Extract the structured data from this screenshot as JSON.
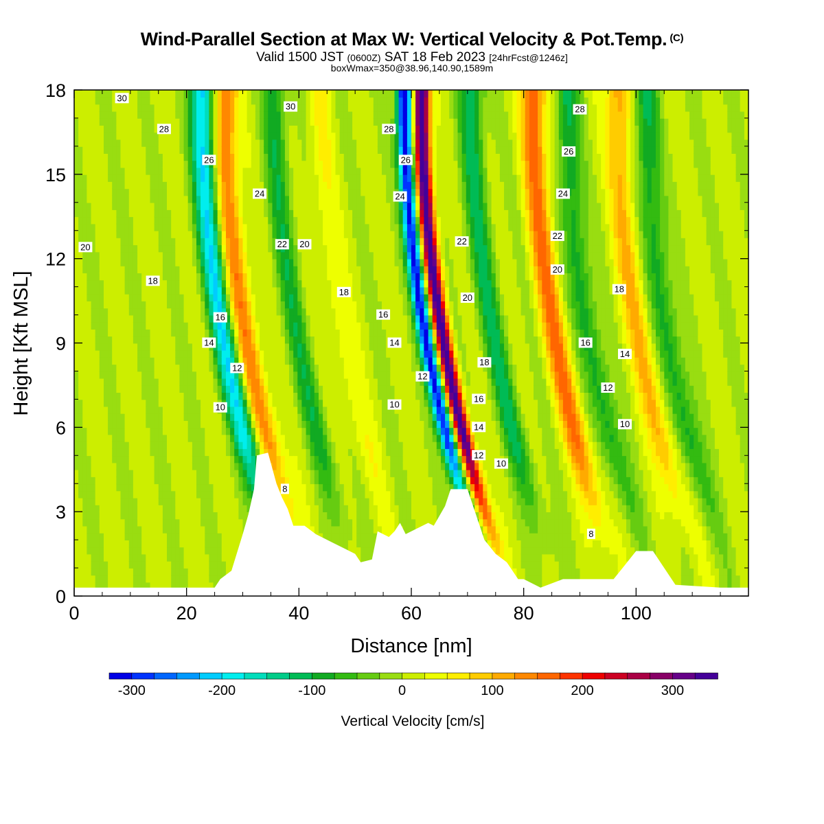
{
  "title": {
    "main": "Wind-Parallel Section at Max W: Vertical Velocity & Pot.Temp.",
    "copyright": "(C)",
    "valid_prefix": "Valid 1500 JST",
    "valid_utc": "(0600Z)",
    "valid_date": "SAT 18 Feb 2023",
    "forecast": "[24hrFcst@1246z]",
    "box_info": "boxWmax=350@38.96,140.90,1589m"
  },
  "colorbar": {
    "title": "Vertical Velocity [cm/s]",
    "tick_labels": [
      "-300",
      "-200",
      "-100",
      "0",
      "100",
      "200",
      "300"
    ],
    "tick_values": [
      -300,
      -200,
      -100,
      0,
      100,
      200,
      300
    ],
    "range": [
      -325,
      350
    ],
    "colors": [
      "#0000e6",
      "#0033ff",
      "#0066ff",
      "#0099ff",
      "#00ccff",
      "#00eeee",
      "#00ddbb",
      "#00cc88",
      "#00bb55",
      "#11aa22",
      "#33bb11",
      "#66cc11",
      "#99dd11",
      "#ccee00",
      "#eeff00",
      "#ffee00",
      "#ffcc00",
      "#ffaa00",
      "#ff8800",
      "#ff6600",
      "#ff3300",
      "#ee0000",
      "#cc0022",
      "#aa0044",
      "#880066",
      "#660088",
      "#440099"
    ]
  },
  "chart_data": {
    "type": "heatmap",
    "title": "Wind-Parallel Section at Max W: Vertical Velocity & Pot.Temp.",
    "xlabel": "Distance [nm]",
    "ylabel": "Height [Kft MSL]",
    "xlim": [
      0,
      120
    ],
    "ylim": [
      0,
      18
    ],
    "x_ticks": [
      0,
      20,
      40,
      60,
      80,
      100
    ],
    "y_ticks": [
      0,
      3,
      6,
      9,
      12,
      15,
      18
    ],
    "field": "Vertical Velocity [cm/s]",
    "updraft_bands": [
      {
        "x_base": 38,
        "peak": 140
      },
      {
        "x_base": 55,
        "peak": 40
      },
      {
        "x_base": 73,
        "peak": 350
      },
      {
        "x_base": 93,
        "peak": 150
      },
      {
        "x_base": 108,
        "peak": 100
      }
    ],
    "downdraft_bands": [
      {
        "x_base": 34,
        "peak": -200
      },
      {
        "x_base": 47,
        "peak": -90
      },
      {
        "x_base": 70,
        "peak": -320
      },
      {
        "x_base": 82,
        "peak": -110
      },
      {
        "x_base": 99,
        "peak": -100
      },
      {
        "x_base": 113,
        "peak": -100
      }
    ],
    "terrain_kft": [
      [
        0,
        0.3
      ],
      [
        25,
        0.3
      ],
      [
        26,
        0.6
      ],
      [
        28,
        0.9
      ],
      [
        30,
        2.2
      ],
      [
        31,
        2.9
      ],
      [
        32,
        3.8
      ],
      [
        32.5,
        5.0
      ],
      [
        34.5,
        5.1
      ],
      [
        36,
        4.0
      ],
      [
        37,
        3.5
      ],
      [
        38,
        3.1
      ],
      [
        39,
        2.5
      ],
      [
        41,
        2.5
      ],
      [
        43,
        2.2
      ],
      [
        46,
        1.9
      ],
      [
        48,
        1.7
      ],
      [
        50,
        1.5
      ],
      [
        51,
        1.2
      ],
      [
        53,
        1.3
      ],
      [
        54,
        2.3
      ],
      [
        56,
        2.1
      ],
      [
        57,
        2.3
      ],
      [
        58,
        2.6
      ],
      [
        59,
        2.2
      ],
      [
        60,
        2.3
      ],
      [
        63,
        2.6
      ],
      [
        64,
        2.5
      ],
      [
        66,
        3.2
      ],
      [
        67,
        3.8
      ],
      [
        70,
        3.8
      ],
      [
        71,
        3.2
      ],
      [
        72,
        2.6
      ],
      [
        73,
        2.0
      ],
      [
        75,
        1.5
      ],
      [
        77,
        1.2
      ],
      [
        79,
        0.6
      ],
      [
        80,
        0.6
      ],
      [
        83,
        0.3
      ],
      [
        87,
        0.6
      ],
      [
        96,
        0.6
      ],
      [
        98,
        1.1
      ],
      [
        100,
        1.6
      ],
      [
        103,
        1.6
      ],
      [
        105,
        1.0
      ],
      [
        107,
        0.4
      ],
      [
        115,
        0.3
      ],
      [
        120,
        0.3
      ]
    ],
    "theta_levels": [
      8,
      10,
      12,
      14,
      16,
      18,
      20,
      22,
      24,
      26,
      28,
      30
    ],
    "contour_labels": [
      {
        "text": "30",
        "x": 8.5,
        "y": 17.7
      },
      {
        "text": "28",
        "x": 16,
        "y": 16.6
      },
      {
        "text": "26",
        "x": 24,
        "y": 15.5
      },
      {
        "text": "24",
        "x": 33,
        "y": 14.3
      },
      {
        "text": "20",
        "x": 2,
        "y": 12.4
      },
      {
        "text": "18",
        "x": 14,
        "y": 11.2
      },
      {
        "text": "16",
        "x": 26,
        "y": 9.9
      },
      {
        "text": "14",
        "x": 24,
        "y": 9.0
      },
      {
        "text": "12",
        "x": 29,
        "y": 8.1
      },
      {
        "text": "10",
        "x": 26,
        "y": 6.7
      },
      {
        "text": "30",
        "x": 38.5,
        "y": 17.4
      },
      {
        "text": "22",
        "x": 37,
        "y": 12.5
      },
      {
        "text": "20",
        "x": 41,
        "y": 12.5
      },
      {
        "text": "18",
        "x": 48,
        "y": 10.8
      },
      {
        "text": "8",
        "x": 37.5,
        "y": 3.8
      },
      {
        "text": "28",
        "x": 56,
        "y": 16.6
      },
      {
        "text": "26",
        "x": 59,
        "y": 15.5
      },
      {
        "text": "24",
        "x": 58,
        "y": 14.2
      },
      {
        "text": "16",
        "x": 55,
        "y": 10.0
      },
      {
        "text": "14",
        "x": 57,
        "y": 9.0
      },
      {
        "text": "12",
        "x": 62,
        "y": 7.8
      },
      {
        "text": "10",
        "x": 57,
        "y": 6.8
      },
      {
        "text": "22",
        "x": 69,
        "y": 12.6
      },
      {
        "text": "20",
        "x": 70,
        "y": 10.6
      },
      {
        "text": "18",
        "x": 73,
        "y": 8.3
      },
      {
        "text": "16",
        "x": 72,
        "y": 7.0
      },
      {
        "text": "14",
        "x": 72,
        "y": 6.0
      },
      {
        "text": "12",
        "x": 72,
        "y": 5.0
      },
      {
        "text": "10",
        "x": 76,
        "y": 4.7
      },
      {
        "text": "28",
        "x": 90,
        "y": 17.3
      },
      {
        "text": "26",
        "x": 88,
        "y": 15.8
      },
      {
        "text": "24",
        "x": 87,
        "y": 14.3
      },
      {
        "text": "22",
        "x": 86,
        "y": 12.8
      },
      {
        "text": "20",
        "x": 86,
        "y": 11.6
      },
      {
        "text": "18",
        "x": 97,
        "y": 10.9
      },
      {
        "text": "16",
        "x": 91,
        "y": 9.0
      },
      {
        "text": "14",
        "x": 98,
        "y": 8.6
      },
      {
        "text": "12",
        "x": 95,
        "y": 7.4
      },
      {
        "text": "10",
        "x": 98,
        "y": 6.1
      },
      {
        "text": "8",
        "x": 92,
        "y": 2.2
      }
    ]
  }
}
